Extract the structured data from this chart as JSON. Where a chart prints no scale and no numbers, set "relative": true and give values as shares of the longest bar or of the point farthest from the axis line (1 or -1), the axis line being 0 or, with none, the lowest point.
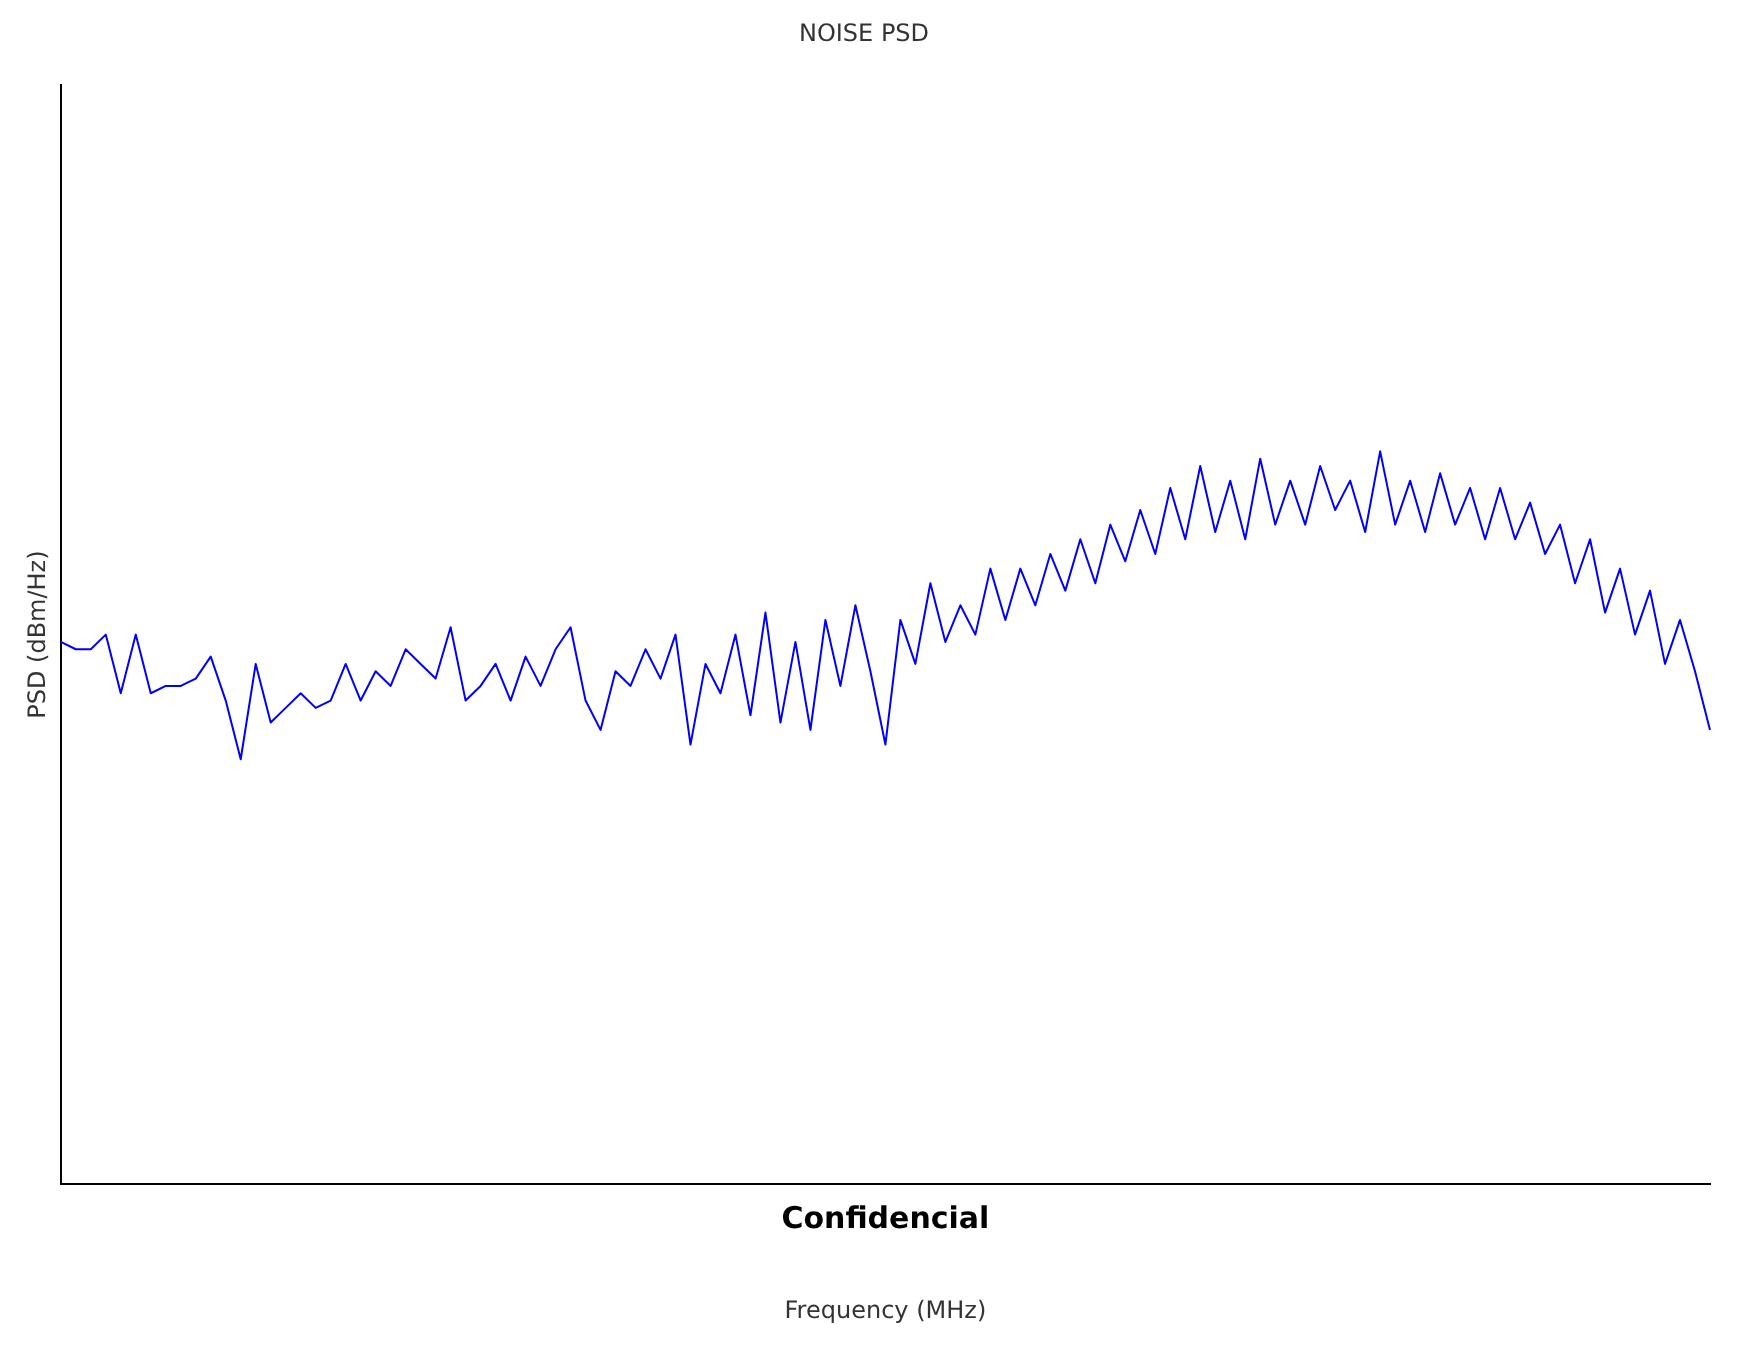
{
  "chart_data": {
    "type": "line",
    "title": "NOISE PSD",
    "xlabel": "Frequency (MHz)",
    "ylabel": "PSD (dBm/Hz)",
    "annotations": [
      "Confidencial"
    ],
    "relative": true,
    "legend": false,
    "marker": "none",
    "line_style": "solid",
    "categories": [
      null,
      null,
      null,
      null,
      null,
      null,
      null,
      null,
      null,
      null,
      null,
      null,
      null,
      null,
      null,
      null,
      null,
      null,
      null,
      null,
      null,
      null,
      null,
      null,
      null,
      null,
      null,
      null,
      null,
      null,
      null,
      null,
      null,
      null,
      null,
      null,
      null,
      null,
      null,
      null,
      null,
      null,
      null,
      null,
      null,
      null,
      null,
      null,
      null,
      null,
      null,
      null,
      null,
      null,
      null,
      null,
      null,
      null,
      null,
      null,
      null,
      null,
      null,
      null,
      null,
      null,
      null,
      null,
      null,
      null,
      null,
      null,
      null,
      null,
      null,
      null,
      null,
      null,
      null,
      null,
      null,
      null,
      null,
      null,
      null,
      null,
      null,
      null,
      null,
      null,
      null,
      null,
      null,
      null,
      null,
      null,
      null,
      null,
      null,
      null,
      null,
      null,
      null,
      null,
      null,
      null,
      null,
      null,
      null,
      null,
      null
    ],
    "series": [
      {
        "color": "#0000ff",
        "values": [
          0.74,
          0.73,
          0.73,
          0.75,
          0.67,
          0.75,
          0.67,
          0.68,
          0.68,
          0.69,
          0.72,
          0.66,
          0.58,
          0.71,
          0.63,
          0.65,
          0.67,
          0.65,
          0.66,
          0.71,
          0.66,
          0.7,
          0.68,
          0.73,
          0.71,
          0.69,
          0.76,
          0.66,
          0.68,
          0.71,
          0.66,
          0.72,
          0.68,
          0.73,
          0.76,
          0.66,
          0.62,
          0.7,
          0.68,
          0.73,
          0.69,
          0.75,
          0.6,
          0.71,
          0.67,
          0.75,
          0.64,
          0.78,
          0.63,
          0.74,
          0.62,
          0.77,
          0.68,
          0.79,
          0.7,
          0.6,
          0.77,
          0.71,
          0.82,
          0.74,
          0.79,
          0.75,
          0.84,
          0.77,
          0.84,
          0.79,
          0.86,
          0.81,
          0.88,
          0.82,
          0.9,
          0.85,
          0.92,
          0.86,
          0.95,
          0.88,
          0.98,
          0.89,
          0.96,
          0.88,
          0.99,
          0.9,
          0.96,
          0.9,
          0.98,
          0.92,
          0.96,
          0.89,
          1.0,
          0.9,
          0.96,
          0.89,
          0.97,
          0.9,
          0.95,
          0.88,
          0.95,
          0.88,
          0.93,
          0.86,
          0.9,
          0.82,
          0.88,
          0.78,
          0.84,
          0.75,
          0.81,
          0.71,
          0.77,
          0.7,
          0.62
        ]
      }
    ]
  }
}
